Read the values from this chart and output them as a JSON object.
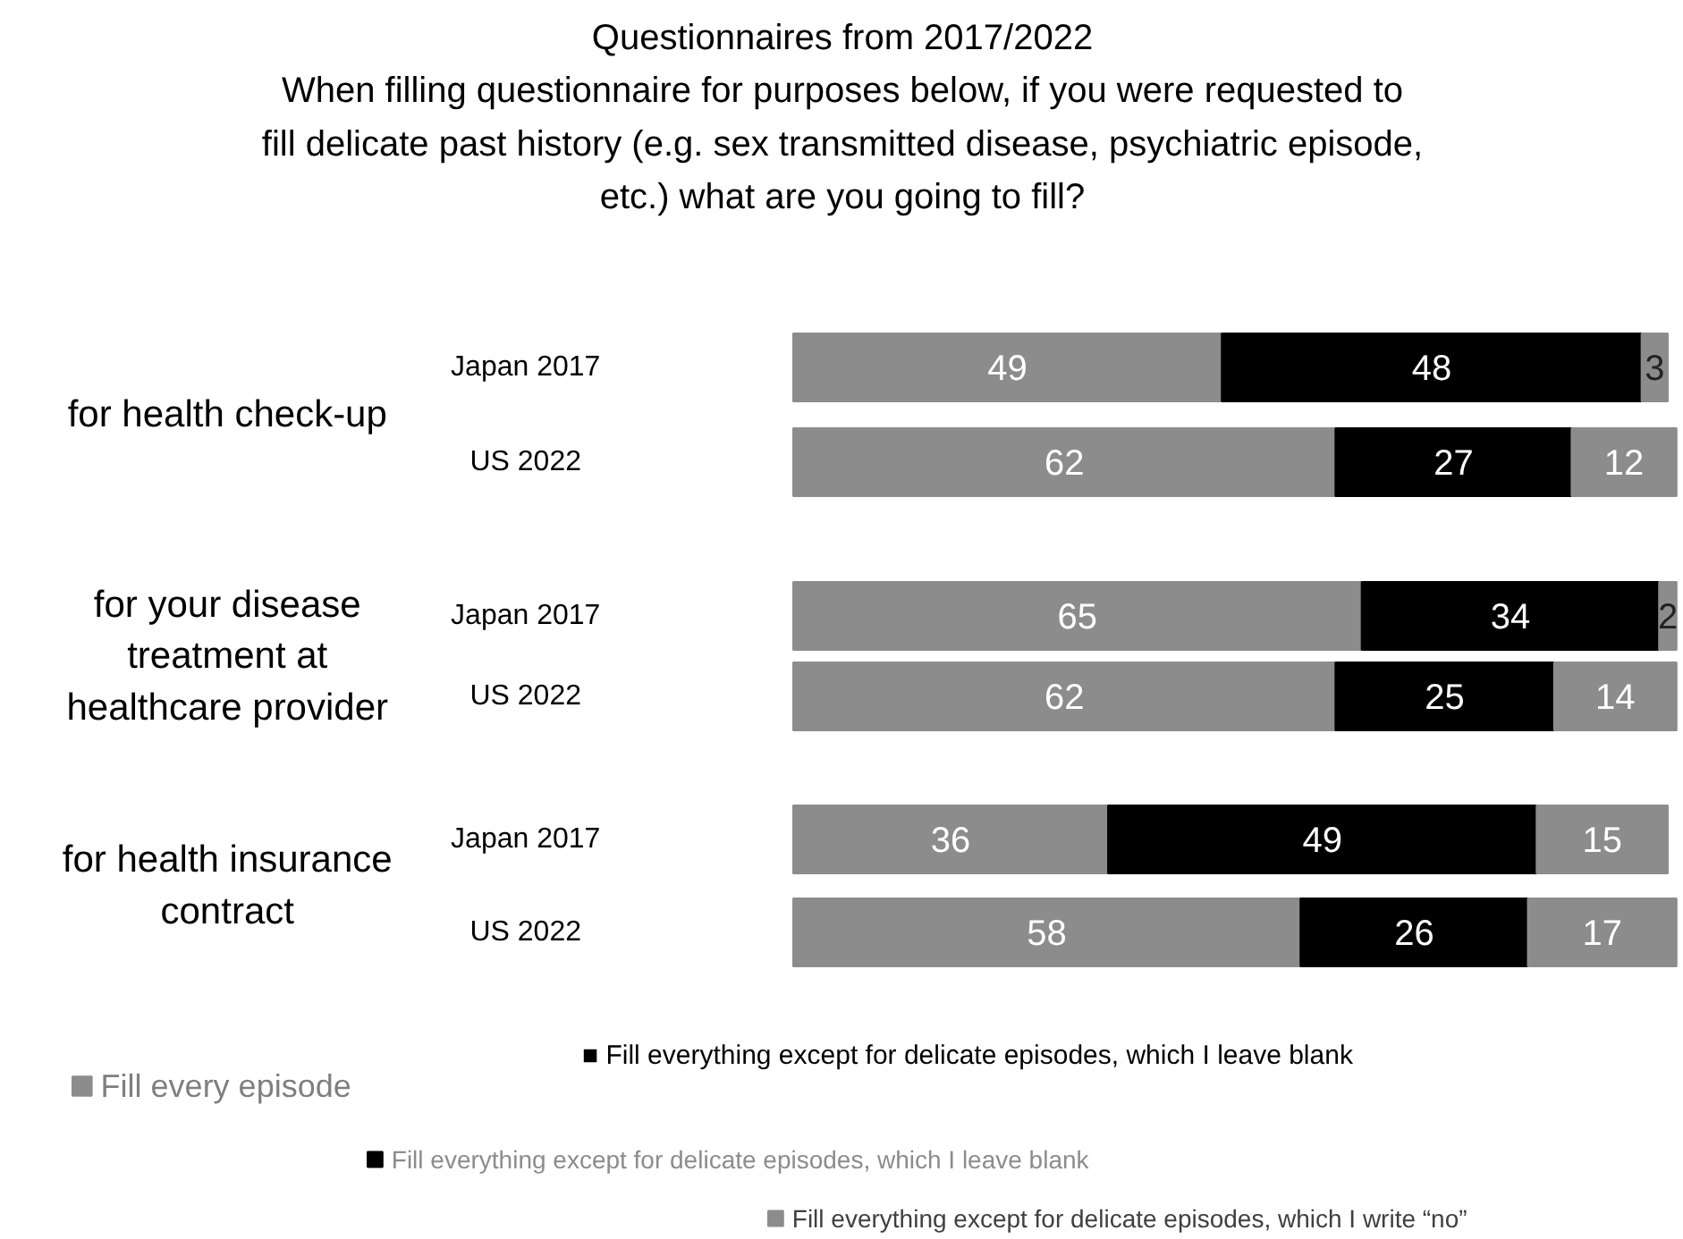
{
  "chart_data": {
    "type": "bar",
    "orientation": "horizontal",
    "stacked": true,
    "data_labels": true,
    "legend": "bottom",
    "grid": false,
    "title": "Questionnaires from 2017/2022\nWhen filling questionnaire for purposes below, if you were requested to\nfill delicate past history (e.g. sex transmitted disease, psychiatric episode,\netc.) what are you going to fill?",
    "categories": [
      "Japan 2017",
      "US 2022",
      "Japan 2017",
      "US 2022",
      "Japan 2017",
      "US 2022"
    ],
    "series": [
      {
        "name": "Fill every episode",
        "color": "#8c8c8c",
        "values": [
          49,
          62,
          65,
          62,
          36,
          58
        ]
      },
      {
        "name": "Fill everything except for delicate episodes, which I leave blank",
        "color": "#000000",
        "values": [
          48,
          27,
          34,
          25,
          49,
          26
        ]
      },
      {
        "name": "Fill everything except for delicate episodes, which I write “no”",
        "color": "#8c8c8c",
        "values": [
          3,
          12,
          2,
          14,
          15,
          17
        ]
      }
    ],
    "annotations": [
      "for health check-up",
      "for your disease\ntreatment at\nhealthcare provider",
      "for health insurance\ncontract",
      "■ Fill everything except for delicate episodes, which I leave blank"
    ]
  }
}
